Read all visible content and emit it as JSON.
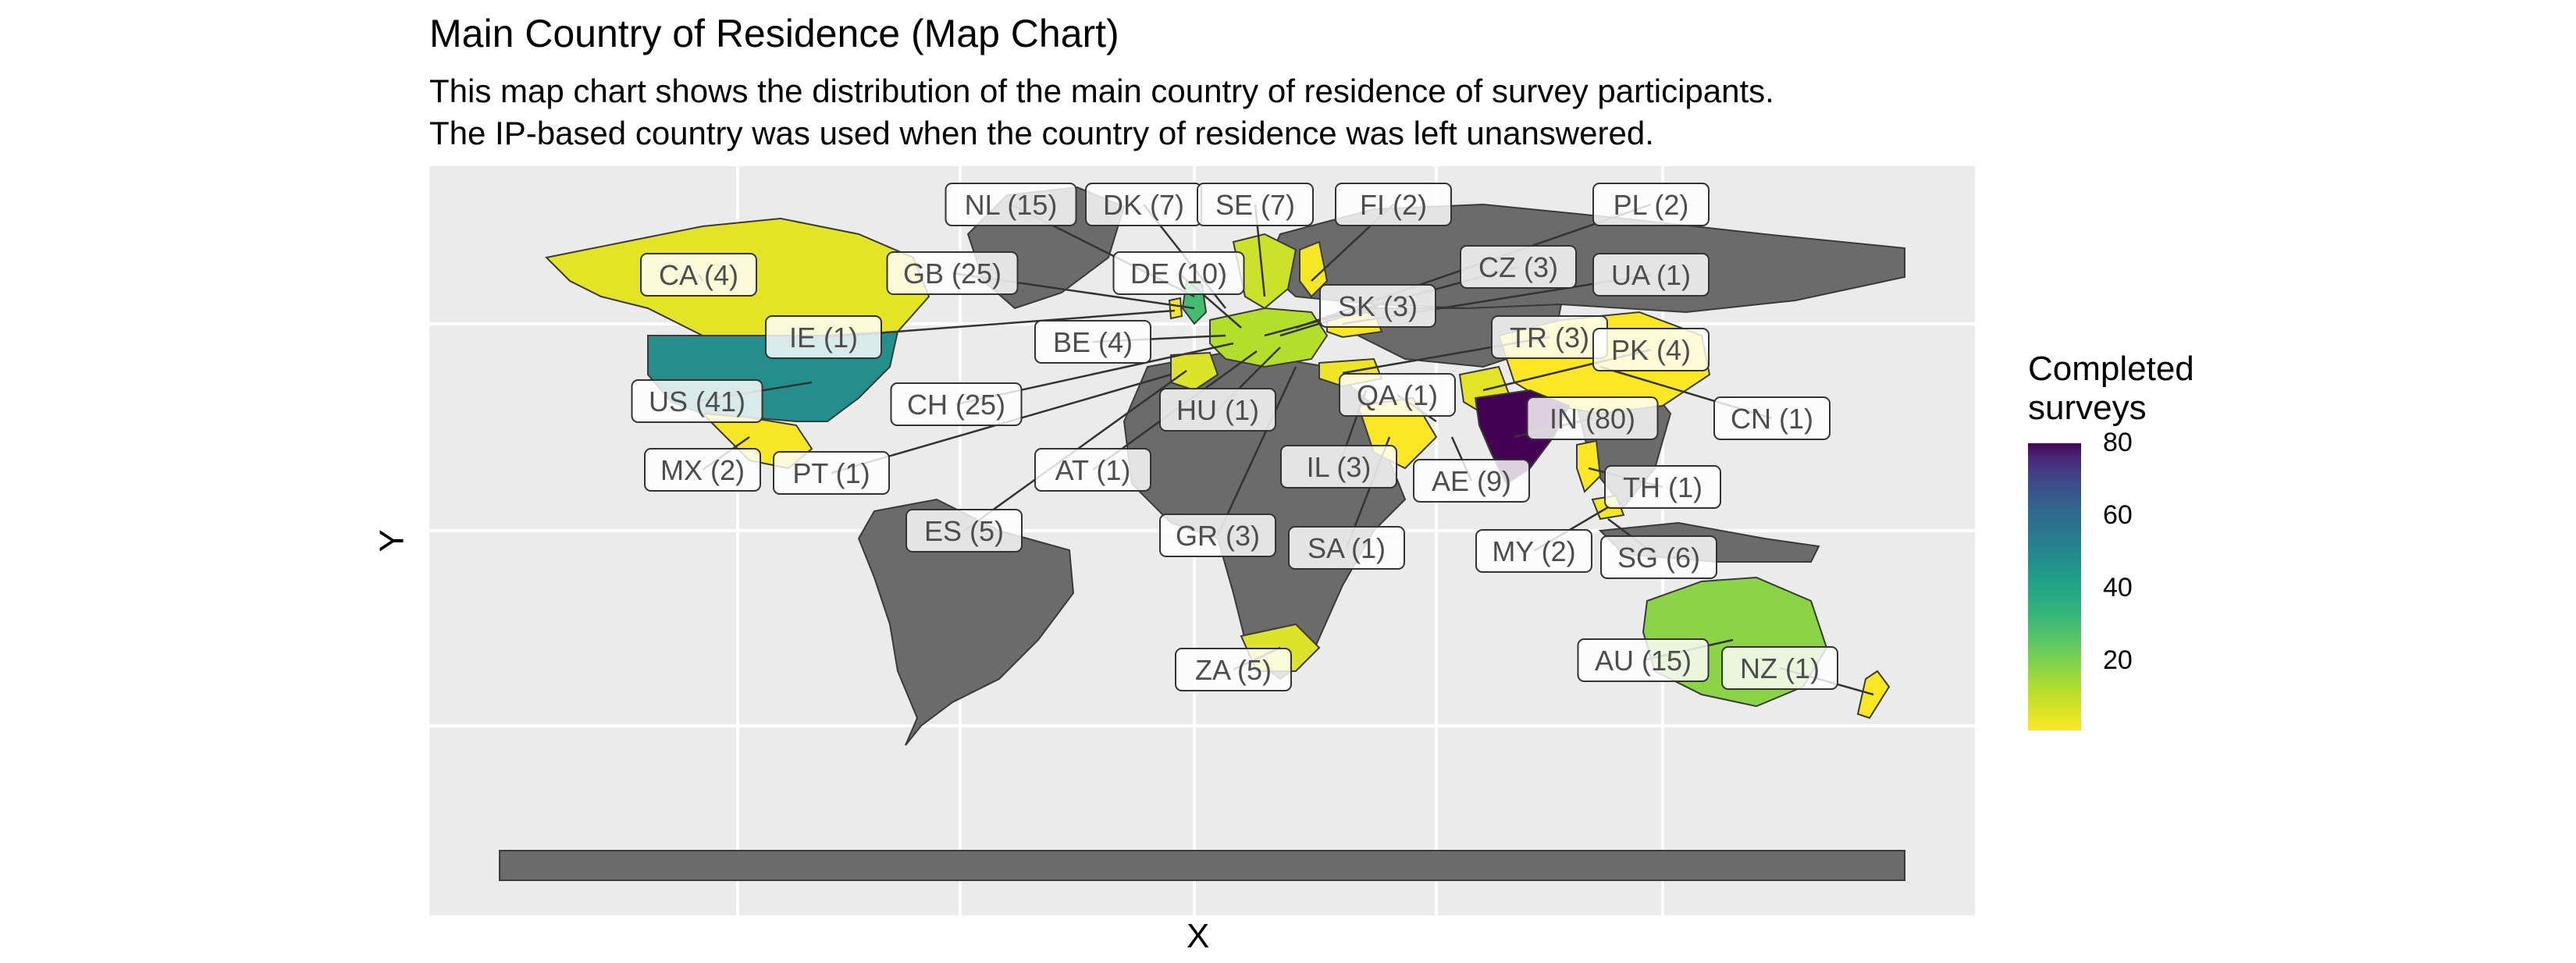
{
  "chart_data": {
    "type": "map",
    "title": "Main Country of Residence (Map Chart)",
    "subtitle_lines": [
      "This map chart shows the distribution of the main country of residence of survey participants.",
      "The IP-based country was used when the country of residence was left unanswered."
    ],
    "xlabel": "X",
    "ylabel": "Y",
    "legend": {
      "title_lines": [
        "Completed",
        "surveys"
      ],
      "ticks": [
        20,
        40,
        60,
        80
      ],
      "range": [
        1,
        80
      ],
      "colors": [
        "#fde725",
        "#35b779",
        "#26828e",
        "#3e4989",
        "#440154"
      ],
      "position": "right"
    },
    "countries": [
      {
        "code": "NL",
        "value": 15
      },
      {
        "code": "DK",
        "value": 7
      },
      {
        "code": "SE",
        "value": 7
      },
      {
        "code": "FI",
        "value": 2
      },
      {
        "code": "PL",
        "value": 2
      },
      {
        "code": "CA",
        "value": 4
      },
      {
        "code": "GB",
        "value": 25
      },
      {
        "code": "DE",
        "value": 10
      },
      {
        "code": "CZ",
        "value": 3
      },
      {
        "code": "UA",
        "value": 1
      },
      {
        "code": "SK",
        "value": 3
      },
      {
        "code": "IE",
        "value": 1
      },
      {
        "code": "BE",
        "value": 4
      },
      {
        "code": "TR",
        "value": 3
      },
      {
        "code": "PK",
        "value": 4
      },
      {
        "code": "US",
        "value": 41
      },
      {
        "code": "CH",
        "value": 25
      },
      {
        "code": "HU",
        "value": 1
      },
      {
        "code": "QA",
        "value": 1
      },
      {
        "code": "IN",
        "value": 80
      },
      {
        "code": "CN",
        "value": 1
      },
      {
        "code": "MX",
        "value": 2
      },
      {
        "code": "PT",
        "value": 1
      },
      {
        "code": "AT",
        "value": 1
      },
      {
        "code": "IL",
        "value": 3
      },
      {
        "code": "AE",
        "value": 9
      },
      {
        "code": "TH",
        "value": 1
      },
      {
        "code": "ES",
        "value": 5
      },
      {
        "code": "GR",
        "value": 3
      },
      {
        "code": "SA",
        "value": 1
      },
      {
        "code": "MY",
        "value": 2
      },
      {
        "code": "SG",
        "value": 6
      },
      {
        "code": "ZA",
        "value": 5
      },
      {
        "code": "AU",
        "value": 15
      },
      {
        "code": "NZ",
        "value": 1
      }
    ],
    "labels": [
      "NL (15)",
      "DK (7)",
      "SE (7)",
      "FI (2)",
      "PL (2)",
      "CA (4)",
      "GB (25)",
      "DE (10)",
      "CZ (3)",
      "UA (1)",
      "SK (3)",
      "IE (1)",
      "BE (4)",
      "TR (3)",
      "PK (4)",
      "US (41)",
      "CH (25)",
      "HU (1)",
      "QA (1)",
      "IN (80)",
      "CN (1)",
      "MX (2)",
      "PT (1)",
      "AT (1)",
      "IL (3)",
      "AE (9)",
      "TH (1)",
      "ES (5)",
      "GR (3)",
      "SA (1)",
      "MY (2)",
      "SG (6)",
      "ZA (5)",
      "AU (15)",
      "NZ (1)"
    ],
    "grid": true,
    "colors": {
      "land": "#6b6b6b",
      "border": "#3a3a3a",
      "panel": "#ebebeb",
      "gridline": "#ffffff"
    }
  }
}
